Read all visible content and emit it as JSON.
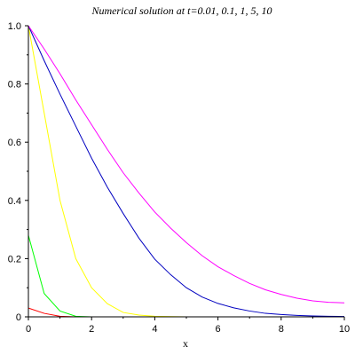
{
  "chart_data": {
    "type": "line",
    "title": "Numerical solution at t=0.01, 0.1, 1, 5, 10",
    "xlabel": "x",
    "ylabel": "",
    "xlim": [
      0,
      10
    ],
    "ylim": [
      0,
      1
    ],
    "x_ticks": [
      0,
      2,
      4,
      6,
      8,
      10
    ],
    "y_ticks": [
      0,
      0.2,
      0.4,
      0.6,
      0.8,
      1.0
    ],
    "x_tick_labels": [
      "0",
      "2",
      "4",
      "6",
      "8",
      "10"
    ],
    "y_tick_labels": [
      "0",
      "0.2",
      "0.4",
      "0.6",
      "0.8",
      "1.0"
    ],
    "grid": false,
    "series": [
      {
        "color": "#ff0000",
        "x": [
          0,
          0.5,
          1.0,
          1.5,
          2.0,
          3.0,
          4.0,
          5.0,
          6.0,
          7.0,
          8.0,
          9.0,
          10.0
        ],
        "y": [
          0.03,
          0.012,
          0.002,
          0.0,
          0.0,
          0.0,
          0.0,
          0.0,
          0.0,
          0.0,
          0.0,
          0.0,
          0.0
        ]
      },
      {
        "color": "#00ff00",
        "x": [
          0,
          0.5,
          1.0,
          1.5,
          2.0,
          3.0,
          4.0,
          5.0,
          6.0,
          7.0,
          8.0,
          9.0,
          10.0
        ],
        "y": [
          0.28,
          0.08,
          0.02,
          0.002,
          0.0,
          0.0,
          0.0,
          0.0,
          0.0,
          0.0,
          0.0,
          0.0,
          0.0
        ]
      },
      {
        "color": "#ffff00",
        "x": [
          0,
          0.5,
          1.0,
          1.5,
          2.0,
          2.5,
          3.0,
          3.5,
          4.0,
          5.0,
          6.0,
          7.0,
          8.0,
          9.0,
          10.0
        ],
        "y": [
          1.0,
          0.7,
          0.4,
          0.2,
          0.1,
          0.045,
          0.015,
          0.006,
          0.002,
          0.0,
          0.0,
          0.0,
          0.0,
          0.0,
          0.0
        ]
      },
      {
        "color": "#0000c0",
        "x": [
          0,
          0.5,
          1.0,
          1.5,
          2.0,
          2.5,
          3.0,
          3.5,
          4.0,
          4.5,
          5.0,
          5.5,
          6.0,
          6.5,
          7.0,
          7.5,
          8.0,
          8.5,
          9.0,
          9.5,
          10.0
        ],
        "y": [
          1.0,
          0.88,
          0.765,
          0.655,
          0.545,
          0.445,
          0.355,
          0.27,
          0.198,
          0.145,
          0.1,
          0.068,
          0.046,
          0.031,
          0.02,
          0.012,
          0.008,
          0.005,
          0.003,
          0.002,
          0.001
        ]
      },
      {
        "color": "#ff00ff",
        "x": [
          0,
          0.5,
          1.0,
          1.5,
          2.0,
          2.5,
          3.0,
          3.5,
          4.0,
          4.5,
          5.0,
          5.5,
          6.0,
          6.5,
          7.0,
          7.5,
          8.0,
          8.5,
          9.0,
          9.5,
          10.0
        ],
        "y": [
          1.0,
          0.92,
          0.835,
          0.745,
          0.66,
          0.575,
          0.495,
          0.425,
          0.36,
          0.305,
          0.255,
          0.21,
          0.172,
          0.142,
          0.115,
          0.093,
          0.077,
          0.064,
          0.055,
          0.05,
          0.048
        ]
      }
    ]
  }
}
